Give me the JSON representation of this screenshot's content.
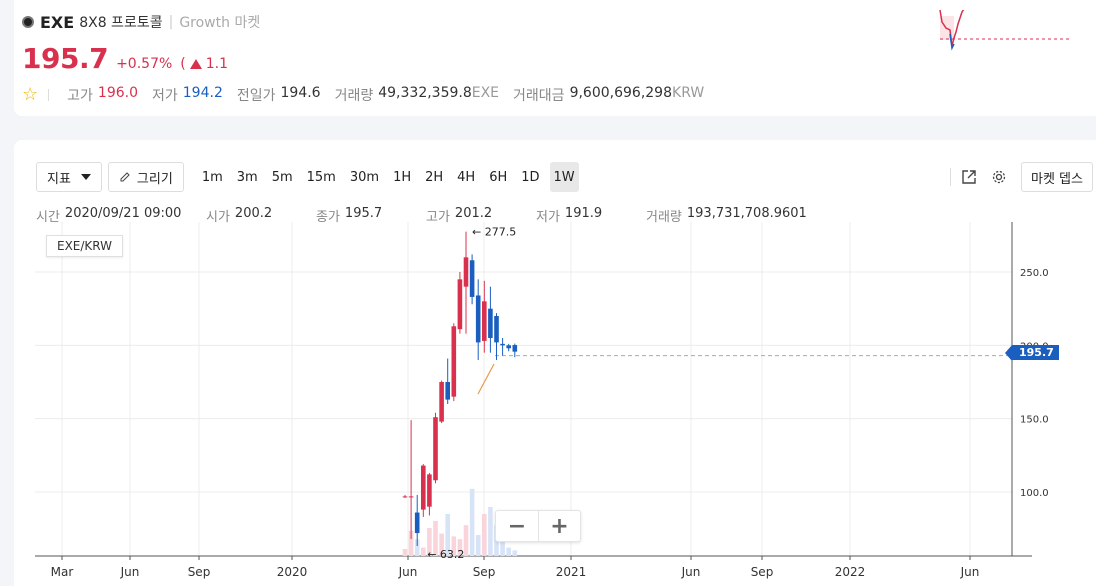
{
  "header": {
    "symbol": "EXE",
    "name": "8X8 프로토콜",
    "separator": "|",
    "market": "Growth 마켓",
    "price": "195.7",
    "change_pct": "+0.57%",
    "change_abs": "1.1",
    "change_paren_open": "(",
    "stats": {
      "high_label": "고가",
      "high": "196.0",
      "low_label": "저가",
      "low": "194.2",
      "prev_label": "전일가",
      "prev": "194.6",
      "vol_label": "거래량",
      "vol": "49,332,359.8",
      "vol_unit": "EXE",
      "amt_label": "거래대금",
      "amt": "9,600,696,298",
      "amt_unit": "KRW"
    }
  },
  "toolbar": {
    "indicator_label": "지표",
    "draw_label": "그리기",
    "timeframes": [
      "1m",
      "3m",
      "5m",
      "15m",
      "30m",
      "1H",
      "2H",
      "4H",
      "6H",
      "1D",
      "1W"
    ],
    "active_timeframe": "1W",
    "depth_label": "마켓 뎁스"
  },
  "ohlc": {
    "time_label": "시간",
    "time": "2020/09/21 09:00",
    "open_label": "시가",
    "open": "200.2",
    "close_label": "종가",
    "close": "195.7",
    "high_label": "고가",
    "high": "201.2",
    "low_label": "저가",
    "low": "191.9",
    "vol_label": "거래량",
    "vol": "193,731,708.9601"
  },
  "pair_label": "EXE/KRW",
  "current_price_tag": "195.7",
  "colors": {
    "up": "#d9304e",
    "down": "#1a5fbf",
    "accent_blue": "#1a5fbf"
  },
  "chart_data": {
    "type": "candlestick",
    "x_tick_labels": [
      "Mar",
      "Jun",
      "Sep",
      "2020",
      "Jun",
      "Sep",
      "2021",
      "Jun",
      "Sep",
      "2022",
      "Jun"
    ],
    "y_tick_labels": [
      "250.0",
      "200.0",
      "150.0",
      "100.0"
    ],
    "y_ticks": [
      250,
      200,
      150,
      100
    ],
    "ylim": [
      58,
      285
    ],
    "high_annotation": "← 277.5",
    "low_annotation": "← 63.2",
    "candles": [
      {
        "o": 97,
        "h": 98,
        "l": 96,
        "c": 97
      },
      {
        "o": 97,
        "h": 149,
        "l": 68,
        "c": 97
      },
      {
        "o": 86,
        "h": 98,
        "l": 63.2,
        "c": 72
      },
      {
        "o": 88,
        "h": 119,
        "l": 83,
        "c": 118
      },
      {
        "o": 90,
        "h": 113,
        "l": 84,
        "c": 112
      },
      {
        "o": 108,
        "h": 154,
        "l": 106,
        "c": 151
      },
      {
        "o": 148,
        "h": 176,
        "l": 147,
        "c": 175
      },
      {
        "o": 175,
        "h": 191,
        "l": 160,
        "c": 163
      },
      {
        "o": 165,
        "h": 215,
        "l": 162,
        "c": 213
      },
      {
        "o": 211,
        "h": 250,
        "l": 208,
        "c": 245
      },
      {
        "o": 240,
        "h": 277.5,
        "l": 208,
        "c": 260
      },
      {
        "o": 258,
        "h": 262,
        "l": 228,
        "c": 233
      },
      {
        "o": 234,
        "h": 245,
        "l": 190,
        "c": 202
      },
      {
        "o": 203,
        "h": 244,
        "l": 195,
        "c": 230
      },
      {
        "o": 225,
        "h": 240,
        "l": 195,
        "c": 205
      },
      {
        "o": 220,
        "h": 222,
        "l": 190,
        "c": 202
      },
      {
        "o": 201,
        "h": 205,
        "l": 193,
        "c": 200
      },
      {
        "o": 200,
        "h": 201,
        "l": 196,
        "c": 198
      },
      {
        "o": 200.2,
        "h": 201.2,
        "l": 191.9,
        "c": 195.7
      }
    ],
    "volumes": [
      5,
      18,
      12,
      6,
      20,
      25,
      16,
      30,
      14,
      12,
      22,
      48,
      15,
      30,
      35,
      22,
      12,
      6,
      4
    ],
    "last_price": 195.7
  }
}
